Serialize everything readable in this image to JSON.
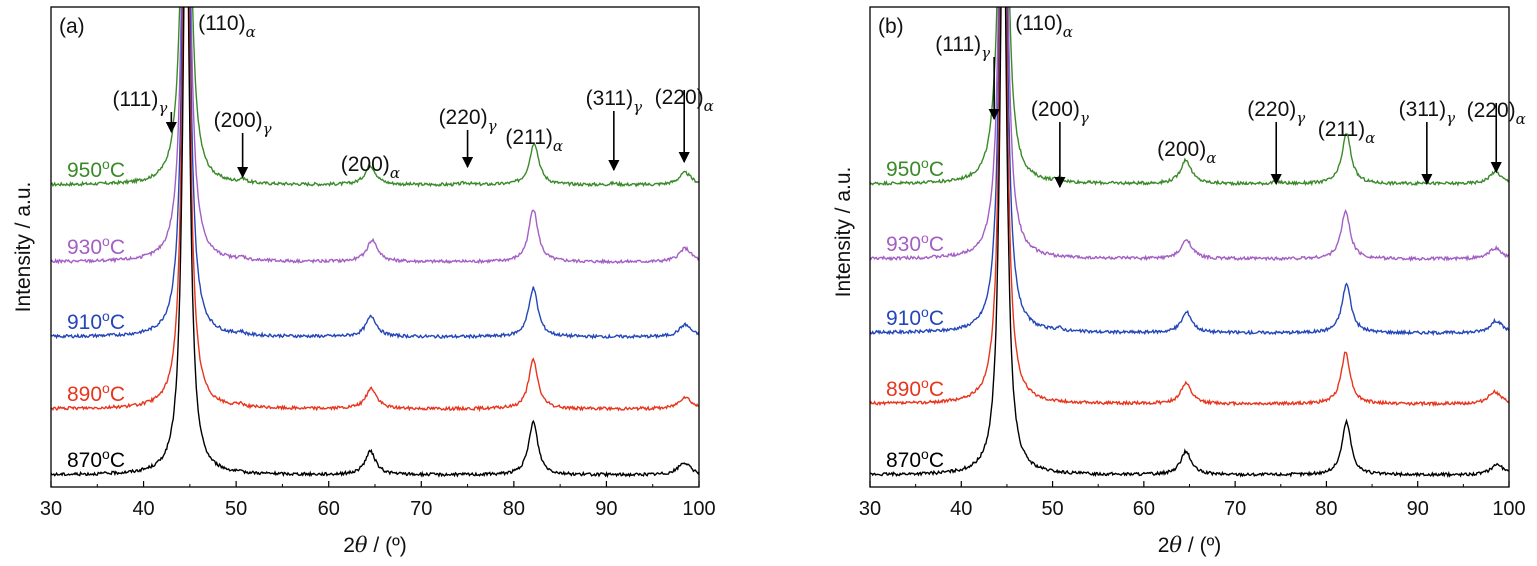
{
  "chart_data": [
    {
      "type": "line",
      "panel_label": "(a)",
      "xlabel": "2θ / (º)",
      "ylabel": "Intensity / a.u.",
      "xlim": [
        30,
        100
      ],
      "xticks": [
        30,
        40,
        50,
        60,
        70,
        80,
        90,
        100
      ],
      "series": [
        {
          "name": "950ºC",
          "label_main": "950",
          "label_sup": "o",
          "label_unit": "C",
          "color": "#3a8a2a",
          "offset": 4,
          "peaks": [
            [
              44.6,
              9.0,
              0.45
            ],
            [
              43.4,
              0.05,
              0.4
            ],
            [
              50.7,
              0.06,
              0.4
            ],
            [
              64.5,
              0.28,
              0.7
            ],
            [
              74.8,
              0.03,
              0.5
            ],
            [
              82.2,
              0.62,
              0.6
            ],
            [
              90.8,
              0.02,
              0.5
            ],
            [
              98.5,
              0.18,
              0.8
            ]
          ]
        },
        {
          "name": "930ºC",
          "label_main": "930",
          "label_sup": "o",
          "label_unit": "C",
          "color": "#a35fc4",
          "offset": 3,
          "peaks": [
            [
              44.6,
              9.0,
              0.45
            ],
            [
              50.7,
              0.04,
              0.4
            ],
            [
              64.7,
              0.32,
              0.7
            ],
            [
              82.1,
              0.78,
              0.6
            ],
            [
              98.5,
              0.2,
              0.8
            ]
          ]
        },
        {
          "name": "910ºC",
          "label_main": "910",
          "label_sup": "o",
          "label_unit": "C",
          "color": "#2346b8",
          "offset": 2,
          "peaks": [
            [
              44.6,
              9.0,
              0.45
            ],
            [
              50.5,
              0.04,
              0.4
            ],
            [
              64.6,
              0.3,
              0.7
            ],
            [
              82.1,
              0.72,
              0.6
            ],
            [
              98.5,
              0.18,
              0.8
            ]
          ]
        },
        {
          "name": "890ºC",
          "label_main": "890",
          "label_sup": "o",
          "label_unit": "C",
          "color": "#e8351e",
          "offset": 1,
          "peaks": [
            [
              44.6,
              9.0,
              0.45
            ],
            [
              50.5,
              0.04,
              0.4
            ],
            [
              64.6,
              0.3,
              0.7
            ],
            [
              82.1,
              0.72,
              0.6
            ],
            [
              98.5,
              0.18,
              0.8
            ]
          ]
        },
        {
          "name": "870ºC",
          "label_main": "870",
          "label_sup": "o",
          "label_unit": "C",
          "color": "#000000",
          "offset": 0,
          "peaks": [
            [
              44.6,
              9.0,
              0.45
            ],
            [
              64.5,
              0.34,
              0.7
            ],
            [
              82.1,
              0.78,
              0.6
            ],
            [
              98.4,
              0.18,
              0.8
            ]
          ]
        }
      ],
      "annotations": [
        {
          "main": "(111)",
          "sub": "γ",
          "x": 43.0,
          "arrow": true
        },
        {
          "main": "(110)",
          "sub": "α",
          "x": 44.6,
          "arrow": false
        },
        {
          "main": "(200)",
          "sub": "γ",
          "x": 50.7,
          "arrow": true
        },
        {
          "main": "(200)",
          "sub": "α",
          "x": 64.5,
          "arrow": false
        },
        {
          "main": "(220)",
          "sub": "γ",
          "x": 75.0,
          "arrow": true
        },
        {
          "main": "(211)",
          "sub": "α",
          "x": 82.2,
          "arrow": false
        },
        {
          "main": "(311)",
          "sub": "γ",
          "x": 90.8,
          "arrow": true
        },
        {
          "main": "(220)",
          "sub": "α",
          "x": 98.4,
          "arrow": true
        }
      ]
    },
    {
      "type": "line",
      "panel_label": "(b)",
      "xlabel": "2θ / (º)",
      "ylabel": "Intensity / a.u.",
      "xlim": [
        30,
        100
      ],
      "xticks": [
        30,
        40,
        50,
        60,
        70,
        80,
        90,
        100
      ],
      "series": [
        {
          "name": "950ºC",
          "label_main": "950",
          "label_sup": "o",
          "label_unit": "C",
          "color": "#3a8a2a",
          "offset": 4,
          "peaks": [
            [
              44.6,
              9.0,
              0.45
            ],
            [
              43.4,
              0.05,
              0.4
            ],
            [
              50.7,
              0.05,
              0.4
            ],
            [
              64.6,
              0.35,
              0.7
            ],
            [
              74.6,
              0.03,
              0.5
            ],
            [
              82.2,
              0.74,
              0.6
            ],
            [
              90.9,
              0.02,
              0.5
            ],
            [
              98.5,
              0.18,
              0.8
            ]
          ]
        },
        {
          "name": "930ºC",
          "label_main": "930",
          "label_sup": "o",
          "label_unit": "C",
          "color": "#a35fc4",
          "offset": 3,
          "peaks": [
            [
              44.6,
              9.0,
              0.45
            ],
            [
              64.7,
              0.28,
              0.7
            ],
            [
              82.1,
              0.7,
              0.6
            ],
            [
              98.5,
              0.16,
              0.8
            ]
          ]
        },
        {
          "name": "910ºC",
          "label_main": "910",
          "label_sup": "o",
          "label_unit": "C",
          "color": "#2346b8",
          "offset": 2,
          "peaks": [
            [
              44.6,
              9.0,
              0.45
            ],
            [
              50.7,
              0.04,
              0.4
            ],
            [
              64.7,
              0.3,
              0.7
            ],
            [
              82.2,
              0.72,
              0.6
            ],
            [
              98.6,
              0.18,
              0.8
            ]
          ]
        },
        {
          "name": "890ºC",
          "label_main": "890",
          "label_sup": "o",
          "label_unit": "C",
          "color": "#e8351e",
          "offset": 1,
          "peaks": [
            [
              44.6,
              9.0,
              0.45
            ],
            [
              64.6,
              0.3,
              0.7
            ],
            [
              82.1,
              0.76,
              0.6
            ],
            [
              98.4,
              0.18,
              0.8
            ]
          ]
        },
        {
          "name": "870ºC",
          "label_main": "870",
          "label_sup": "o",
          "label_unit": "C",
          "color": "#000000",
          "offset": 0,
          "peaks": [
            [
              44.6,
              9.0,
              0.45
            ],
            [
              64.6,
              0.34,
              0.7
            ],
            [
              82.2,
              0.78,
              0.6
            ],
            [
              98.7,
              0.16,
              0.8
            ]
          ]
        }
      ],
      "annotations": [
        {
          "main": "(111)",
          "sub": "γ",
          "x": 43.6,
          "arrow": true
        },
        {
          "main": "(110)",
          "sub": "α",
          "x": 44.6,
          "arrow": false
        },
        {
          "main": "(200)",
          "sub": "γ",
          "x": 50.8,
          "arrow": true
        },
        {
          "main": "(200)",
          "sub": "α",
          "x": 64.7,
          "arrow": false
        },
        {
          "main": "(220)",
          "sub": "γ",
          "x": 74.5,
          "arrow": true
        },
        {
          "main": "(211)",
          "sub": "α",
          "x": 82.2,
          "arrow": false
        },
        {
          "main": "(311)",
          "sub": "γ",
          "x": 91.0,
          "arrow": true
        },
        {
          "main": "(220)",
          "sub": "α",
          "x": 98.6,
          "arrow": true
        }
      ]
    }
  ]
}
